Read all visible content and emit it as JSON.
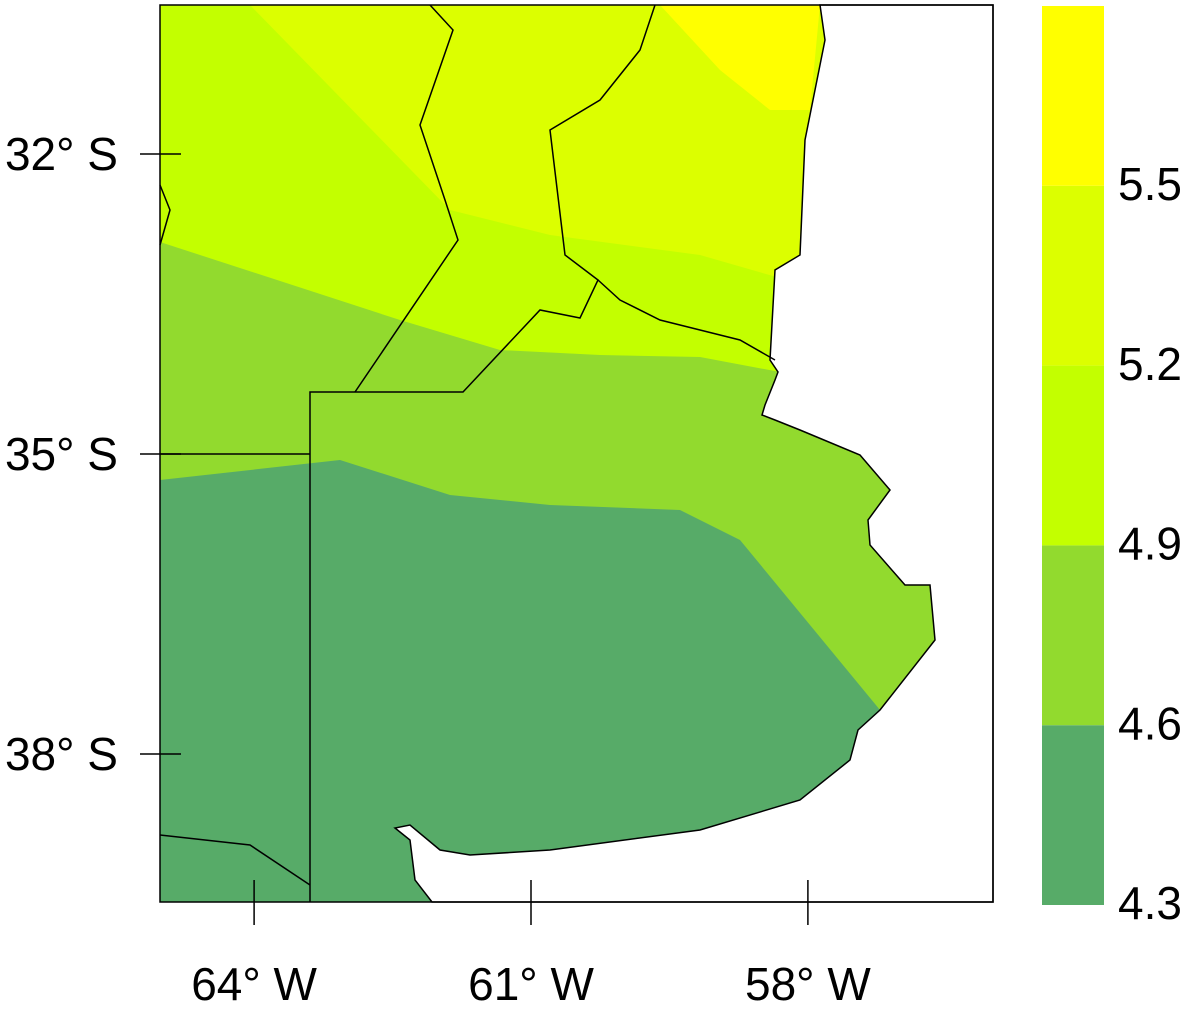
{
  "map": {
    "lat_ticks": [
      {
        "value": -32,
        "label": "32° S"
      },
      {
        "value": -35,
        "label": "35° S"
      },
      {
        "value": -38,
        "label": "38° S"
      }
    ],
    "lon_ticks": [
      {
        "value": -64,
        "label": "64° W"
      },
      {
        "value": -61,
        "label": "61° W"
      },
      {
        "value": -58,
        "label": "58° W"
      }
    ],
    "legend": {
      "breaks": [
        4.3,
        4.6,
        4.9,
        5.2,
        5.5
      ],
      "colors": [
        "#57ab68",
        "#92da2e",
        "#c3ff00",
        "#dcff00",
        "#ffff00"
      ]
    }
  }
}
